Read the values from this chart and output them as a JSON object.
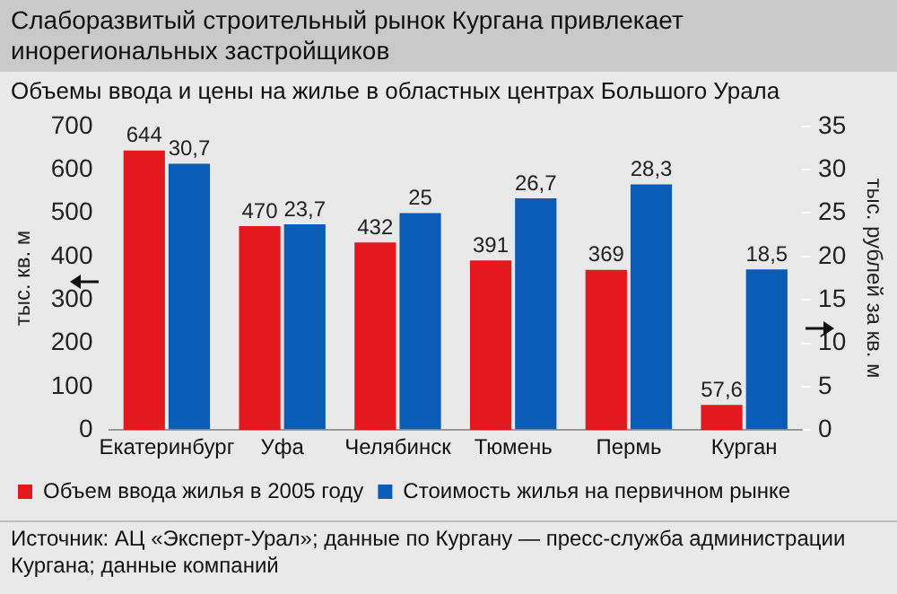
{
  "chart_data": {
    "type": "bar",
    "title": "Слаборазвитый строительный рынок Кургана привлекает инорегиональных застройщиков",
    "subtitle": "Объемы ввода и цены на жилье в областных центрах Большого Урала",
    "ylabel": "тыс. кв. м",
    "y2label": "тыс. рублей за кв. м",
    "categories": [
      "Екатеринбург",
      "Уфа",
      "Челябинск",
      "Тюмень",
      "Пермь",
      "Курган"
    ],
    "series": [
      {
        "name": "Объем ввода жилья в 2005 году",
        "color": "#e3191e",
        "values": [
          644,
          470,
          432,
          391,
          369,
          57.6
        ],
        "value_labels": [
          "644",
          "470",
          "432",
          "391",
          "369",
          "57,6"
        ]
      },
      {
        "name": "Стоимость жилья на первичном рынке",
        "color": "#0a5cb4",
        "axis": "y2",
        "values": [
          30.7,
          23.7,
          25,
          26.7,
          28.3,
          18.5
        ],
        "value_labels": [
          "30,7",
          "23,7",
          "25",
          "26,7",
          "28,3",
          "18,5"
        ]
      }
    ],
    "ylim": [
      0,
      700
    ],
    "yticks": [
      0,
      100,
      200,
      300,
      400,
      500,
      600,
      700
    ],
    "y2lim": [
      0,
      35
    ],
    "y2ticks": [
      0,
      5,
      10,
      15,
      20,
      25,
      30,
      35
    ],
    "grid": false,
    "legend": "bottom",
    "annotations": [
      "Источник: АЦ «Эксперт-Урал»; данные по Кургану — пресс-служба администрации Кургана; данные компаний"
    ]
  }
}
